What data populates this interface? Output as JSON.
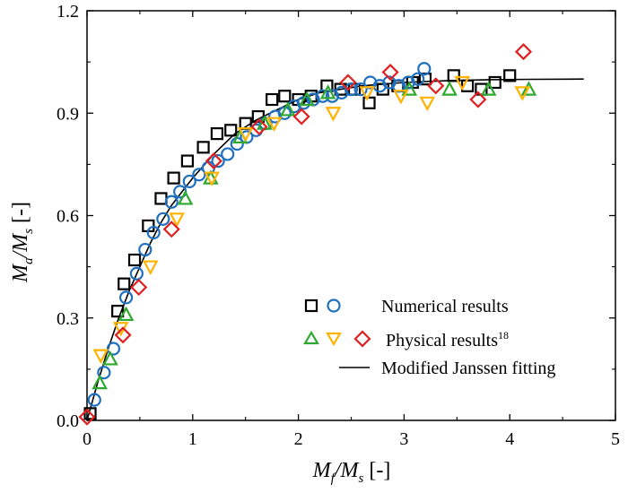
{
  "chart_data": {
    "type": "scatter",
    "xlim": [
      0,
      5
    ],
    "ylim": [
      0,
      1.2
    ],
    "xticks": [
      "0",
      "1",
      "2",
      "3",
      "4",
      "5"
    ],
    "yticks": [
      "0.0",
      "0.3",
      "0.6",
      "0.9",
      "1.2"
    ],
    "xlabel": {
      "main": "M",
      "sub1": "f",
      "mid": "/M",
      "sub2": "s",
      "unit": " [-]"
    },
    "ylabel": {
      "main": "M",
      "sub1": "a",
      "mid": "/M",
      "sub2": "s",
      "unit": " [-]"
    },
    "legend": {
      "numerical": "Numerical results",
      "physical": "Physical results",
      "physical_ref": "18",
      "fit": "Modified Janssen fitting"
    },
    "series": [
      {
        "name": "Numerical (square)",
        "marker": "square",
        "color": "#000000",
        "x": [
          0.03,
          0.29,
          0.35,
          0.45,
          0.58,
          0.7,
          0.82,
          0.95,
          1.1,
          1.23,
          1.36,
          1.5,
          1.62,
          1.75,
          1.87,
          2.0,
          2.12,
          2.27,
          2.4,
          2.53,
          2.67,
          2.8,
          2.94,
          3.08,
          3.2,
          3.47,
          3.6,
          3.73,
          3.86,
          4.0
        ],
        "y": [
          0.02,
          0.32,
          0.4,
          0.47,
          0.57,
          0.65,
          0.71,
          0.76,
          0.8,
          0.84,
          0.85,
          0.87,
          0.89,
          0.94,
          0.95,
          0.94,
          0.95,
          0.98,
          0.97,
          0.97,
          0.93,
          0.97,
          0.98,
          0.99,
          1.0,
          1.01,
          0.98,
          0.97,
          0.99,
          1.01
        ]
      },
      {
        "name": "Numerical (circle)",
        "marker": "circle",
        "color": "#1f6fbf",
        "x": [
          0.07,
          0.16,
          0.25,
          0.37,
          0.47,
          0.55,
          0.63,
          0.72,
          0.8,
          0.88,
          0.97,
          1.06,
          1.15,
          1.24,
          1.33,
          1.42,
          1.51,
          1.6,
          1.69,
          1.78,
          1.87,
          1.96,
          2.05,
          2.14,
          2.23,
          2.32,
          2.41,
          2.5,
          2.59,
          2.68,
          2.77,
          2.86,
          2.95,
          3.04,
          3.13,
          3.19
        ],
        "y": [
          0.06,
          0.14,
          0.21,
          0.36,
          0.43,
          0.5,
          0.55,
          0.59,
          0.64,
          0.67,
          0.7,
          0.72,
          0.74,
          0.76,
          0.78,
          0.81,
          0.83,
          0.85,
          0.87,
          0.89,
          0.9,
          0.92,
          0.93,
          0.94,
          0.95,
          0.95,
          0.96,
          0.97,
          0.97,
          0.99,
          0.98,
          0.99,
          0.98,
          0.99,
          1.0,
          1.03
        ]
      },
      {
        "name": "Physical (triangle)",
        "marker": "triangle",
        "color": "#2ea82e",
        "x": [
          0.12,
          0.22,
          0.37,
          0.93,
          1.17,
          1.45,
          1.68,
          1.9,
          2.08,
          2.28,
          3.05,
          3.43,
          3.8,
          4.18
        ],
        "y": [
          0.11,
          0.18,
          0.31,
          0.65,
          0.71,
          0.83,
          0.87,
          0.91,
          0.94,
          0.96,
          0.97,
          0.97,
          0.97,
          0.97
        ],
        "label": "Physical results"
      },
      {
        "name": "Physical (inverted triangle)",
        "marker": "invtriangle",
        "color": "#ffb300",
        "x": [
          0.13,
          0.32,
          0.6,
          0.85,
          1.18,
          1.5,
          1.77,
          2.33,
          2.65,
          2.97,
          3.22,
          3.55,
          4.12
        ],
        "y": [
          0.19,
          0.27,
          0.45,
          0.59,
          0.71,
          0.84,
          0.87,
          0.9,
          0.96,
          0.95,
          0.93,
          0.99,
          0.96
        ]
      },
      {
        "name": "Physical (diamond)",
        "marker": "diamond",
        "color": "#e02020",
        "x": [
          0.0,
          0.34,
          0.49,
          0.8,
          1.2,
          1.63,
          2.03,
          2.47,
          2.87,
          3.3,
          3.7,
          4.13
        ],
        "y": [
          0.01,
          0.25,
          0.39,
          0.56,
          0.76,
          0.86,
          0.89,
          0.99,
          1.02,
          0.98,
          0.94,
          1.08
        ]
      }
    ],
    "fit": {
      "name": "Modified Janssen fitting",
      "x": [
        0,
        0.1,
        0.2,
        0.3,
        0.4,
        0.5,
        0.6,
        0.7,
        0.8,
        0.9,
        1.0,
        1.2,
        1.4,
        1.6,
        1.8,
        2.0,
        2.2,
        2.4,
        2.6,
        2.8,
        3.0,
        3.4,
        3.8,
        4.2,
        4.7
      ],
      "y": [
        0,
        0.11,
        0.21,
        0.3,
        0.38,
        0.45,
        0.52,
        0.58,
        0.63,
        0.67,
        0.71,
        0.78,
        0.84,
        0.88,
        0.91,
        0.94,
        0.96,
        0.97,
        0.98,
        0.985,
        0.99,
        0.995,
        0.998,
        0.999,
        1.0
      ]
    }
  }
}
